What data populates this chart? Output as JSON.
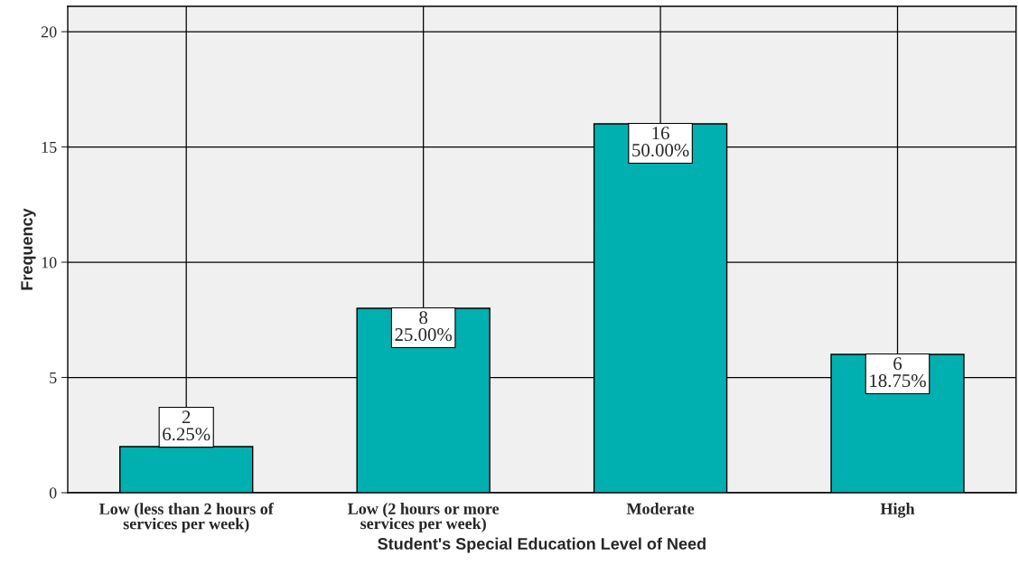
{
  "chart_data": {
    "type": "bar",
    "xlabel": "Student's Special Education Level of Need",
    "ylabel": "Frequency",
    "categories": [
      "Low (less than 2 hours of\nservices per week)",
      "Low (2 hours or more\nservices per week)",
      "Moderate",
      "High"
    ],
    "values": [
      2,
      8,
      16,
      6
    ],
    "value_labels": [
      "2\n6.25%",
      "8\n25.00%",
      "16\n50.00%",
      "6\n18.75%"
    ],
    "color": "#00b0b0",
    "ylim": [
      0,
      21.1
    ],
    "yticks": [
      0,
      5,
      10,
      15,
      20
    ],
    "grid": true
  }
}
